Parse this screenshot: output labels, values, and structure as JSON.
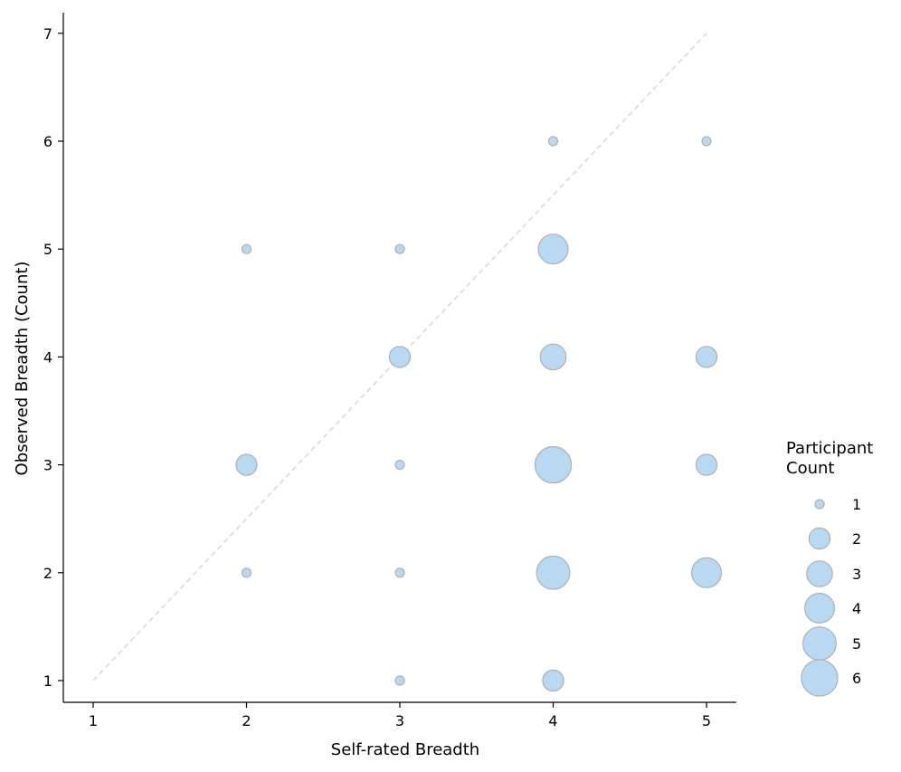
{
  "chart_data": {
    "type": "scatter",
    "subtype": "bubble",
    "title": "",
    "xlabel": "Self-rated Breadth",
    "ylabel": "Observed Breadth (Count)",
    "xlim": [
      0.8,
      5.2
    ],
    "ylim": [
      0.8,
      7.2
    ],
    "xticks": [
      1,
      2,
      3,
      4,
      5
    ],
    "yticks": [
      1,
      2,
      3,
      4,
      5,
      6,
      7
    ],
    "grid": false,
    "reference_line": {
      "from": [
        1,
        1
      ],
      "to": [
        5,
        7
      ],
      "style": "dashed",
      "color": "#d9d9d9"
    },
    "marker_color": "#b9d9f2",
    "marker_edge_color": "#b0b0b0",
    "points": [
      {
        "x": 2,
        "y": 2,
        "count": 1
      },
      {
        "x": 2,
        "y": 3,
        "count": 2
      },
      {
        "x": 2,
        "y": 5,
        "count": 1
      },
      {
        "x": 3,
        "y": 1,
        "count": 1
      },
      {
        "x": 3,
        "y": 2,
        "count": 1
      },
      {
        "x": 3,
        "y": 3,
        "count": 1
      },
      {
        "x": 3,
        "y": 4,
        "count": 2
      },
      {
        "x": 3,
        "y": 5,
        "count": 1
      },
      {
        "x": 4,
        "y": 1,
        "count": 2
      },
      {
        "x": 4,
        "y": 2,
        "count": 5
      },
      {
        "x": 4,
        "y": 3,
        "count": 6
      },
      {
        "x": 4,
        "y": 4,
        "count": 3
      },
      {
        "x": 4,
        "y": 5,
        "count": 4
      },
      {
        "x": 4,
        "y": 6,
        "count": 1
      },
      {
        "x": 5,
        "y": 2,
        "count": 4
      },
      {
        "x": 5,
        "y": 3,
        "count": 2
      },
      {
        "x": 5,
        "y": 4,
        "count": 2
      },
      {
        "x": 5,
        "y": 6,
        "count": 1
      }
    ],
    "legend": {
      "title_lines": [
        "Participant",
        "Count"
      ],
      "position": "right",
      "entries": [
        1,
        2,
        3,
        4,
        5,
        6
      ]
    }
  }
}
